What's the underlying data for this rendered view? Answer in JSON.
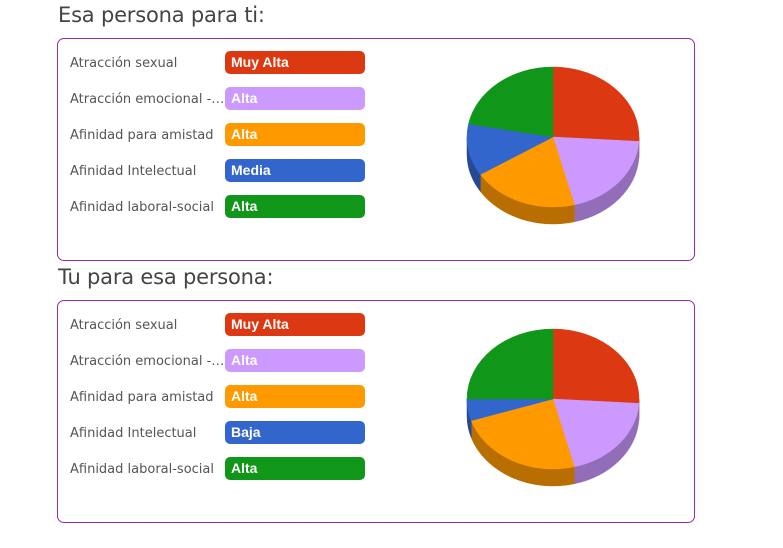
{
  "sections": [
    {
      "title": "Esa persona para ti:",
      "rows": [
        {
          "label": "Atracción sexual",
          "value": "Muy Alta",
          "color": "#dc3912"
        },
        {
          "label": "Atracción emocional - pareja",
          "value": "Alta",
          "color": "#cc99ff"
        },
        {
          "label": "Afinidad para amistad",
          "value": "Alta",
          "color": "#ff9900"
        },
        {
          "label": "Afinidad Intelectual",
          "value": "Media",
          "color": "#3366cc"
        },
        {
          "label": "Afinidad laboral-social",
          "value": "Alta",
          "color": "#109618"
        }
      ]
    },
    {
      "title": "Tu para esa persona:",
      "rows": [
        {
          "label": "Atracción sexual",
          "value": "Muy Alta",
          "color": "#dc3912"
        },
        {
          "label": "Atracción emocional - pareja",
          "value": "Alta",
          "color": "#cc99ff"
        },
        {
          "label": "Afinidad para amistad",
          "value": "Alta",
          "color": "#ff9900"
        },
        {
          "label": "Afinidad Intelectual",
          "value": "Baja",
          "color": "#3366cc"
        },
        {
          "label": "Afinidad laboral-social",
          "value": "Alta",
          "color": "#109618"
        }
      ]
    }
  ],
  "chart_data": [
    {
      "type": "pie",
      "style": "3d",
      "categories": [
        "Atracción sexual",
        "Atracción emocional - pareja",
        "Afinidad para amistad",
        "Afinidad Intelectual",
        "Afinidad laboral-social"
      ],
      "values": [
        26,
        20,
        20,
        12,
        22
      ],
      "colors": [
        "#dc3912",
        "#cc99ff",
        "#ff9900",
        "#3366cc",
        "#109618"
      ]
    },
    {
      "type": "pie",
      "style": "3d",
      "categories": [
        "Atracción sexual",
        "Atracción emocional - pareja",
        "Afinidad para amistad",
        "Afinidad Intelectual",
        "Afinidad laboral-social"
      ],
      "values": [
        26,
        20,
        24,
        5,
        25
      ],
      "colors": [
        "#dc3912",
        "#cc99ff",
        "#ff9900",
        "#3366cc",
        "#109618"
      ]
    }
  ]
}
